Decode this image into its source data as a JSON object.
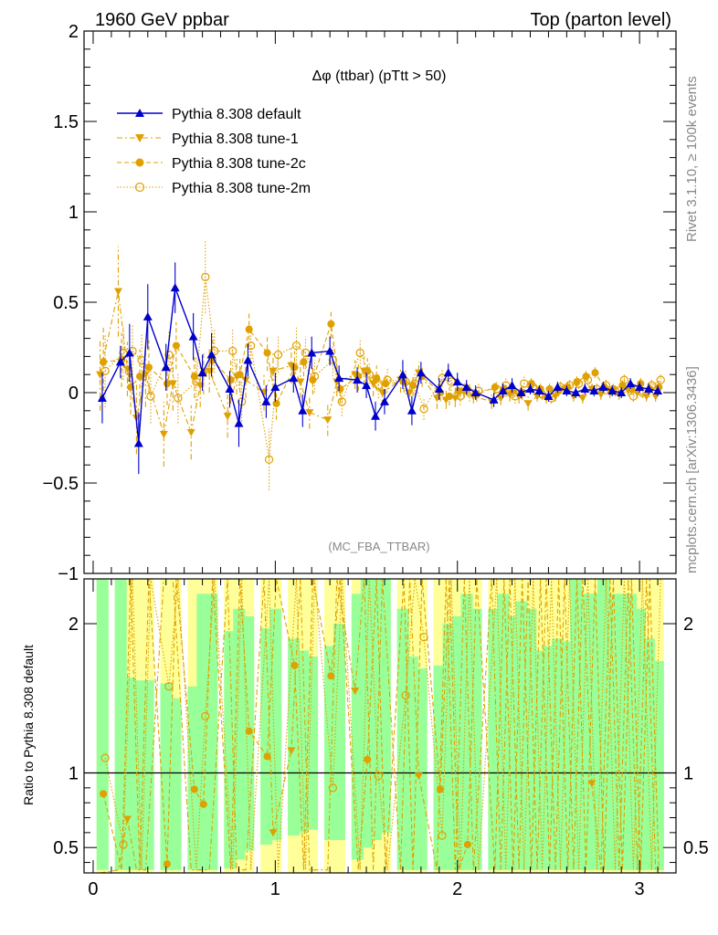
{
  "header": {
    "left": "1960 GeV ppbar",
    "right": "Top (parton level)"
  },
  "side_labels": {
    "rivet": "Rivet 3.1.10, ≥ 100k events",
    "mcplots": "mcplots.cern.ch [arXiv:1306.3436]"
  },
  "colors": {
    "default": "#0000cc",
    "tunes": "#e0a000",
    "green_band": "#99ff99",
    "yellow_band": "#ffff99"
  },
  "chart_data": [
    {
      "type": "line",
      "title": "Δφ (ttbar) (pTtt > 50)",
      "watermark": "(MC_FBA_TTBAR)",
      "xlim": [
        -0.05,
        3.2
      ],
      "ylim": [
        -1.0,
        2.0
      ],
      "yticks": [
        -1,
        -0.5,
        0,
        0.5,
        1,
        1.5,
        2
      ],
      "ytick_labels": [
        "−1",
        "−0.5",
        "0",
        "0.5",
        "1",
        "1.5",
        "2"
      ],
      "legend_position": "top-left",
      "x": [
        0.05,
        0.15,
        0.2,
        0.25,
        0.3,
        0.4,
        0.45,
        0.55,
        0.6,
        0.65,
        0.75,
        0.8,
        0.85,
        0.95,
        1.0,
        1.1,
        1.15,
        1.2,
        1.3,
        1.35,
        1.45,
        1.5,
        1.55,
        1.6,
        1.7,
        1.75,
        1.8,
        1.9,
        1.95,
        2.0,
        2.05,
        2.1,
        2.2,
        2.25,
        2.3,
        2.35,
        2.4,
        2.45,
        2.5,
        2.55,
        2.6,
        2.65,
        2.7,
        2.75,
        2.8,
        2.85,
        2.9,
        2.95,
        3.0,
        3.05,
        3.1
      ],
      "series": [
        {
          "name": "Pythia 8.308 default",
          "marker": "triangle-up",
          "values": [
            -0.03,
            0.17,
            0.22,
            -0.28,
            0.42,
            0.14,
            0.58,
            0.31,
            0.11,
            0.21,
            0.02,
            -0.17,
            0.18,
            -0.05,
            0.03,
            0.08,
            -0.1,
            0.22,
            0.23,
            0.08,
            0.07,
            0.04,
            -0.13,
            -0.05,
            0.1,
            -0.1,
            0.11,
            0.02,
            0.11,
            0.06,
            0.03,
            0.0,
            -0.04,
            0.01,
            0.04,
            0.0,
            0.02,
            0.01,
            -0.02,
            0.03,
            0.01,
            0.0,
            0.02,
            0.01,
            0.03,
            0.01,
            0.0,
            0.05,
            0.03,
            0.02,
            0.01
          ],
          "errors": [
            0.14,
            0.09,
            0.16,
            0.17,
            0.18,
            0.13,
            0.14,
            0.13,
            0.1,
            0.12,
            0.1,
            0.13,
            0.09,
            0.09,
            0.08,
            0.08,
            0.09,
            0.09,
            0.08,
            0.07,
            0.07,
            0.07,
            0.08,
            0.07,
            0.08,
            0.08,
            0.06,
            0.06,
            0.05,
            0.05,
            0.04,
            0.04,
            0.04,
            0.04,
            0.04,
            0.03,
            0.03,
            0.03,
            0.03,
            0.03,
            0.03,
            0.03,
            0.03,
            0.03,
            0.03,
            0.03,
            0.03,
            0.03,
            0.03,
            0.03,
            0.03
          ]
        },
        {
          "name": "Pythia 8.308 tune-1",
          "marker": "triangle-down",
          "values": [
            0.1,
            0.56,
            0.13,
            -0.14,
            0.1,
            -0.23,
            0.05,
            -0.22,
            0.04,
            0.12,
            -0.13,
            0.09,
            0.07,
            0.0,
            0.12,
            0.15,
            0.06,
            -0.11,
            -0.15,
            0.06,
            0.1,
            0.12,
            0.05,
            0.0,
            0.07,
            0.0,
            0.11,
            -0.03,
            -0.04,
            -0.03,
            0.01,
            -0.02,
            -0.05,
            -0.03,
            -0.01,
            -0.02,
            -0.06,
            -0.02,
            -0.03,
            -0.02,
            0.02,
            -0.02,
            -0.03,
            0.02,
            -0.01,
            0.0,
            -0.01,
            0.01,
            0.0,
            -0.02,
            -0.02
          ],
          "errors": [
            0.2,
            0.25,
            0.15,
            0.2,
            0.18,
            0.18,
            0.15,
            0.15,
            0.12,
            0.12,
            0.12,
            0.1,
            0.1,
            0.1,
            0.1,
            0.1,
            0.09,
            0.09,
            0.09,
            0.08,
            0.08,
            0.08,
            0.07,
            0.07,
            0.07,
            0.07,
            0.06,
            0.06,
            0.05,
            0.05,
            0.04,
            0.04,
            0.04,
            0.04,
            0.04,
            0.04,
            0.04,
            0.03,
            0.03,
            0.03,
            0.03,
            0.03,
            0.03,
            0.03,
            0.03,
            0.03,
            0.03,
            0.03,
            0.03,
            0.03,
            0.03
          ]
        },
        {
          "name": "Pythia 8.308 tune-2c",
          "marker": "circle",
          "values": [
            0.17,
            0.18,
            0.03,
            0.09,
            0.14,
            0.05,
            0.26,
            0.09,
            0.11,
            0.18,
            0.07,
            0.1,
            0.35,
            0.22,
            -0.06,
            0.14,
            0.17,
            0.07,
            0.38,
            0.02,
            0.09,
            0.12,
            0.08,
            0.05,
            0.06,
            0.04,
            0.09,
            0.0,
            -0.02,
            0.01,
            0.02,
            -0.01,
            0.03,
            0.02,
            0.01,
            0.0,
            0.05,
            0.02,
            0.02,
            0.01,
            0.03,
            0.06,
            0.09,
            0.11,
            0.03,
            0.02,
            0.04,
            0.02,
            0.05,
            0.02,
            0.03
          ],
          "errors": [
            0.2,
            0.15,
            0.15,
            0.15,
            0.15,
            0.12,
            0.13,
            0.12,
            0.12,
            0.11,
            0.12,
            0.1,
            0.1,
            0.1,
            0.09,
            0.09,
            0.08,
            0.08,
            0.08,
            0.08,
            0.08,
            0.07,
            0.07,
            0.06,
            0.06,
            0.06,
            0.06,
            0.05,
            0.05,
            0.05,
            0.04,
            0.04,
            0.04,
            0.04,
            0.04,
            0.04,
            0.03,
            0.03,
            0.03,
            0.03,
            0.03,
            0.03,
            0.03,
            0.03,
            0.03,
            0.03,
            0.03,
            0.03,
            0.03,
            0.03,
            0.03
          ]
        },
        {
          "name": "Pythia 8.308 tune-2m",
          "marker": "open-circle",
          "values": [
            0.12,
            0.22,
            0.23,
            0.18,
            -0.02,
            0.21,
            -0.03,
            0.06,
            0.64,
            0.23,
            0.23,
            -0.05,
            0.26,
            -0.37,
            0.21,
            0.26,
            0.22,
            0.09,
            0.18,
            -0.05,
            0.22,
            0.1,
            0.04,
            0.07,
            0.06,
            0.05,
            -0.09,
            0.08,
            0.06,
            -0.02,
            0.0,
            0.01,
            0.02,
            0.04,
            -0.02,
            0.05,
            0.03,
            -0.01,
            -0.03,
            0.03,
            0.04,
            0.05,
            0.07,
            0.02,
            0.04,
            0.01,
            0.07,
            -0.02,
            0.0,
            0.04,
            0.07
          ],
          "errors": [
            0.2,
            0.15,
            0.15,
            0.15,
            0.15,
            0.13,
            0.14,
            0.14,
            0.2,
            0.12,
            0.12,
            0.11,
            0.11,
            0.17,
            0.1,
            0.1,
            0.09,
            0.09,
            0.09,
            0.08,
            0.08,
            0.07,
            0.07,
            0.07,
            0.07,
            0.06,
            0.06,
            0.05,
            0.05,
            0.05,
            0.05,
            0.04,
            0.04,
            0.04,
            0.04,
            0.04,
            0.04,
            0.03,
            0.03,
            0.03,
            0.03,
            0.03,
            0.03,
            0.03,
            0.03,
            0.03,
            0.03,
            0.03,
            0.03,
            0.03,
            0.03
          ]
        }
      ]
    },
    {
      "type": "line",
      "ylabel": "Ratio to Pythia 8.308 default",
      "xlim": [
        -0.05,
        3.2
      ],
      "ylim": [
        0.33,
        2.3
      ],
      "yticks": [
        0.5,
        1,
        2
      ],
      "ytick_labels": [
        "0.5",
        "1",
        "2"
      ],
      "xticks": [
        0,
        1,
        2,
        3
      ],
      "xtick_labels": [
        "0",
        "1",
        "2",
        "3"
      ],
      "bands": {
        "green_lower": [
          0.35,
          0.35,
          0.35,
          0.35,
          0.35,
          0.35,
          0.35,
          0.35,
          0.35,
          0.35,
          0.36,
          0.42,
          0.48,
          0.52,
          0.55,
          0.58,
          0.6,
          0.62,
          0.55,
          0.55,
          0.42,
          0.5,
          0.55,
          0.6,
          0.35,
          0.35,
          0.35,
          0.35,
          0.35,
          0.35,
          0.35,
          0.35,
          0.35,
          0.35,
          0.35,
          0.35,
          0.35,
          0.35,
          0.35,
          0.35,
          0.35,
          0.35,
          0.35,
          0.35,
          0.35,
          0.35,
          0.35,
          0.35,
          0.35,
          0.35,
          0.35
        ],
        "green_upper": [
          2.3,
          2.3,
          1.64,
          1.62,
          1.62,
          1.6,
          1.5,
          1.58,
          2.2,
          2.2,
          1.95,
          2.1,
          2.05,
          1.97,
          2.1,
          1.9,
          1.82,
          1.78,
          1.85,
          2.0,
          2.2,
          2.3,
          2.3,
          2.3,
          2.1,
          1.78,
          1.7,
          1.72,
          2.0,
          2.05,
          2.2,
          2.1,
          2.1,
          2.2,
          2.05,
          2.15,
          2.1,
          1.82,
          1.85,
          1.9,
          1.88,
          2.3,
          2.2,
          2.2,
          2.3,
          2.2,
          2.2,
          2.2,
          2.1,
          1.9,
          1.75
        ]
      },
      "x": [
        0.05,
        0.15,
        0.2,
        0.25,
        0.3,
        0.4,
        0.45,
        0.55,
        0.6,
        0.65,
        0.75,
        0.8,
        0.85,
        0.95,
        1.0,
        1.1,
        1.15,
        1.2,
        1.3,
        1.35,
        1.45,
        1.5,
        1.55,
        1.6,
        1.7,
        1.75,
        1.8,
        1.9,
        1.95,
        2.0,
        2.05,
        2.1,
        2.2,
        2.25,
        2.3,
        2.35,
        2.4,
        2.45,
        2.5,
        2.55,
        2.6,
        2.65,
        2.7,
        2.75,
        2.8,
        2.85,
        2.9,
        2.95,
        3.0,
        3.05,
        3.1
      ],
      "series": [
        {
          "name": "Pythia 8.308 tune-1",
          "marker": "triangle-down",
          "values": [
            0.2,
            0.35,
            0.69,
            0.35,
            0.35,
            2.3,
            2.3,
            0.35,
            0.35,
            0.35,
            2.3,
            0.35,
            0.35,
            2.3,
            0.6,
            1.15,
            2.3,
            0.35,
            0.35,
            2.3,
            1.55,
            2.3,
            0.35,
            2.3,
            0.35,
            2.3,
            0.98,
            0.35,
            2.3,
            0.35,
            2.3,
            0.35,
            2.3,
            0.35,
            2.3,
            0.35,
            2.3,
            0.35,
            2.3,
            0.35,
            2.3,
            0.35,
            2.3,
            0.93,
            0.35,
            2.3,
            0.35,
            2.3,
            0.35,
            2.3,
            0.35
          ]
        },
        {
          "name": "Pythia 8.308 tune-2c",
          "marker": "circle",
          "values": [
            0.86,
            0.35,
            2.3,
            0.35,
            2.3,
            0.39,
            2.3,
            0.89,
            0.79,
            2.3,
            0.35,
            2.3,
            1.28,
            1.11,
            2.3,
            1.72,
            0.35,
            2.3,
            1.65,
            2.3,
            0.35,
            1.09,
            2.3,
            0.35,
            2.3,
            0.35,
            2.3,
            0.89,
            2.3,
            0.35,
            0.52,
            2.3,
            0.35,
            2.3,
            0.35,
            2.3,
            0.35,
            2.3,
            0.35,
            2.3,
            0.35,
            2.3,
            0.35,
            2.3,
            0.35,
            2.3,
            0.35,
            2.3,
            0.35,
            2.3,
            0.35
          ]
        },
        {
          "name": "Pythia 8.308 tune-2m",
          "marker": "open-circle",
          "values": [
            1.1,
            0.52,
            2.3,
            0.35,
            2.3,
            1.58,
            2.3,
            0.35,
            1.38,
            2.3,
            0.35,
            2.3,
            0.35,
            2.3,
            0.35,
            2.3,
            0.35,
            2.3,
            0.9,
            2.3,
            0.35,
            2.3,
            0.98,
            0.35,
            1.52,
            2.3,
            1.91,
            0.58,
            2.3,
            0.35,
            2.3,
            0.35,
            2.3,
            0.35,
            2.3,
            0.35,
            2.3,
            0.35,
            2.3,
            0.35,
            2.3,
            0.35,
            2.3,
            0.35,
            2.3,
            0.35,
            2.3,
            0.35,
            2.3,
            0.35,
            2.3
          ]
        }
      ]
    }
  ]
}
